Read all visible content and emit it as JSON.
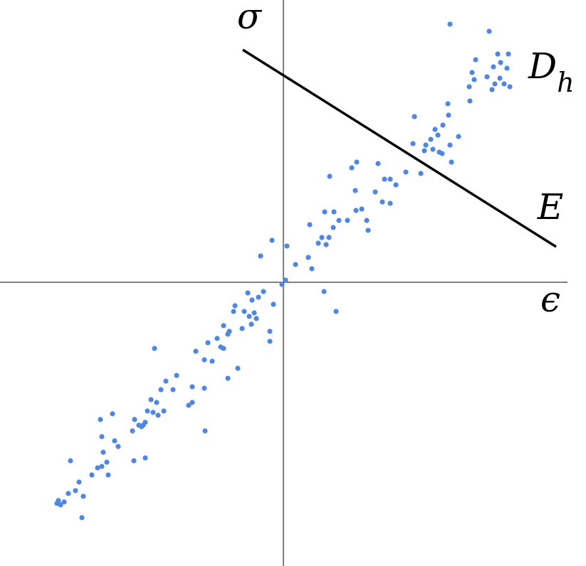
{
  "chart_data": {
    "type": "scatter",
    "x_label": "ϵ",
    "y_label": "σ",
    "cluster_label": {
      "main": "D",
      "subscript": "h"
    },
    "xlim": [
      -398,
      425
    ],
    "ylim": [
      -399,
      397
    ],
    "color": "#4f86e0",
    "fit_line": {
      "name": "E",
      "x": [
        -57,
        383
      ],
      "y": [
        327,
        50
      ],
      "color": "#000000"
    },
    "x": [
      234,
      289,
      301,
      316,
      270,
      305,
      295,
      265,
      314,
      286,
      304,
      268,
      297,
      261,
      310,
      293,
      318,
      262,
      231,
      232,
      184,
      224,
      213,
      217,
      207,
      246,
      200,
      182,
      234,
      210,
      219,
      198,
      223,
      236,
      193,
      133,
      172,
      150,
      142,
      96,
      103,
      158,
      65,
      129,
      101,
      139,
      150,
      110,
      102,
      78,
      90,
      58,
      71,
      117,
      37,
      70,
      119,
      54,
      64,
      60,
      -16,
      5,
      49,
      -32,
      35,
      17,
      40,
      3,
      -2,
      57,
      74,
      -28,
      -50,
      -35,
      -44,
      -14,
      -68,
      -55,
      -41,
      -48,
      -70,
      -38,
      -45,
      -58,
      -19,
      -84,
      -76,
      -78,
      -93,
      -19,
      -106,
      -88,
      -181,
      -123,
      -84,
      -100,
      -111,
      -64,
      -150,
      -78,
      -165,
      -172,
      -155,
      -128,
      -111,
      -186,
      -178,
      -128,
      -133,
      -168,
      -191,
      -183,
      -176,
      -240,
      -209,
      -194,
      -199,
      -212,
      -257,
      -203,
      -197,
      -110,
      -255,
      -237,
      -232,
      -253,
      -194,
      -248,
      -299,
      -210,
      -261,
      -255,
      -269,
      -246,
      -287,
      -292,
      -302,
      -281,
      -316,
      -308,
      -313,
      -318,
      -283
    ],
    "y": [
      363,
      353,
      321,
      321,
      313,
      309,
      303,
      295,
      301,
      289,
      287,
      285,
      279,
      275,
      279,
      271,
      275,
      255,
      251,
      235,
      233,
      221,
      215,
      207,
      201,
      205,
      193,
      195,
      193,
      187,
      183,
      185,
      181,
      169,
      153,
      167,
      155,
      145,
      145,
      161,
      169,
      137,
      149,
      127,
      129,
      113,
      111,
      103,
      101,
      87,
      87,
      99,
      99,
      87,
      81,
      77,
      73,
      63,
      63,
      53,
      59,
      51,
      55,
      37,
      35,
      25,
      19,
      3,
      -3,
      -13,
      -41,
      -13,
      -15,
      -21,
      -25,
      -31,
      -33,
      -41,
      -43,
      -48,
      -41,
      -51,
      -59,
      -65,
      -69,
      -61,
      -69,
      -73,
      -79,
      -83,
      -85,
      -91,
      -93,
      -97,
      -93,
      -111,
      -109,
      -121,
      -131,
      -135,
      -139,
      -151,
      -151,
      -147,
      -149,
      -165,
      -169,
      -169,
      -173,
      -181,
      -181,
      -183,
      -187,
      -185,
      -193,
      -197,
      -203,
      -209,
      -193,
      -201,
      -201,
      -209,
      -217,
      -223,
      -231,
      -239,
      -247,
      -253,
      -251,
      -251,
      -261,
      -259,
      -271,
      -271,
      -281,
      -293,
      -297,
      -301,
      -307,
      -309,
      -313,
      -311,
      -331
    ]
  }
}
